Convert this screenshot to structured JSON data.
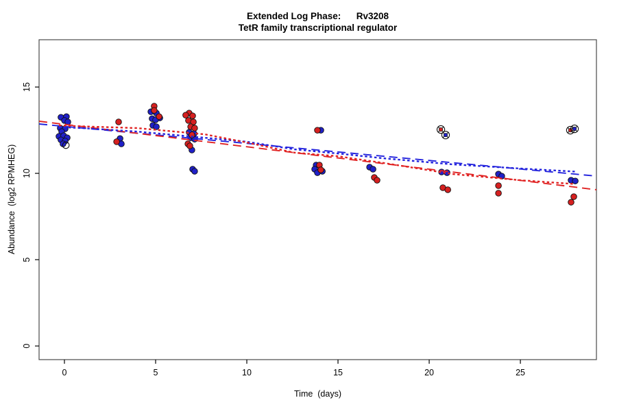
{
  "title": {
    "line1": "Extended Log Phase:      Rv3208",
    "line2": "TetR family transcriptional regulator"
  },
  "axes": {
    "x_label": "Time  (days)",
    "y_label": "Abundance  (log2 RPMHEG)"
  },
  "colors": {
    "background": "#ffffff",
    "axis": "#4a4a4a",
    "text": "#000000",
    "point_blue": "#2020c8",
    "point_red": "#d62020",
    "line_blue": "#2323dd",
    "line_red": "#e02222",
    "marker_outline": "#101010"
  },
  "chart_data": {
    "type": "scatter",
    "title": "Extended Log Phase: Rv3208",
    "subtitle": "TetR family transcriptional regulator",
    "xlabel": "Time (days)",
    "ylabel": "Abundance (log2 RPMHEG)",
    "xlim": [
      -1.39,
      29.17
    ],
    "ylim": [
      -0.79,
      17.74
    ],
    "x_ticks": [
      0,
      5,
      10,
      15,
      20,
      25
    ],
    "y_ticks": [
      0,
      5,
      10,
      15
    ],
    "grid": false,
    "legend": "none",
    "series": [
      {
        "name": "blue-replicate",
        "marker": "filled-circle",
        "color": "blue",
        "points": [
          [
            -0.19,
            13.25
          ],
          [
            0.11,
            13.29
          ],
          [
            0.0,
            13.06
          ],
          [
            0.19,
            12.98
          ],
          [
            -0.23,
            12.62
          ],
          [
            0.04,
            12.58
          ],
          [
            -0.15,
            12.42
          ],
          [
            -0.3,
            12.14
          ],
          [
            -0.04,
            12.18
          ],
          [
            0.15,
            12.06
          ],
          [
            -0.19,
            11.94
          ],
          [
            0.04,
            11.87
          ],
          [
            -0.08,
            11.71
          ],
          [
            3.05,
            12.02
          ],
          [
            3.12,
            11.71
          ],
          [
            4.74,
            13.57
          ],
          [
            5.04,
            13.49
          ],
          [
            5.23,
            13.21
          ],
          [
            4.81,
            13.17
          ],
          [
            5.0,
            13.1
          ],
          [
            4.85,
            12.78
          ],
          [
            5.04,
            12.7
          ],
          [
            6.84,
            12.38
          ],
          [
            7.11,
            12.3
          ],
          [
            6.92,
            12.06
          ],
          [
            7.14,
            11.98
          ],
          [
            6.99,
            11.35
          ],
          [
            7.03,
            10.24
          ],
          [
            7.14,
            10.12
          ],
          [
            14.06,
            12.5
          ],
          [
            13.8,
            10.48
          ],
          [
            13.72,
            10.24
          ],
          [
            14.14,
            10.12
          ],
          [
            13.87,
            10.04
          ],
          [
            16.73,
            10.36
          ],
          [
            16.92,
            10.24
          ],
          [
            20.68,
            10.08
          ],
          [
            20.98,
            10.04
          ],
          [
            23.8,
            9.96
          ],
          [
            23.98,
            9.84
          ],
          [
            27.78,
            9.6
          ],
          [
            28.01,
            9.56
          ]
        ]
      },
      {
        "name": "red-replicate",
        "marker": "filled-circle",
        "color": "red",
        "points": [
          [
            2.97,
            12.98
          ],
          [
            2.86,
            11.83
          ],
          [
            4.92,
            13.89
          ],
          [
            4.92,
            13.65
          ],
          [
            5.19,
            13.29
          ],
          [
            6.84,
            13.49
          ],
          [
            6.65,
            13.37
          ],
          [
            7.03,
            13.33
          ],
          [
            6.8,
            13.06
          ],
          [
            7.07,
            12.98
          ],
          [
            6.92,
            12.7
          ],
          [
            7.14,
            12.62
          ],
          [
            6.99,
            12.22
          ],
          [
            6.77,
            11.71
          ],
          [
            6.88,
            11.59
          ],
          [
            13.87,
            12.5
          ],
          [
            13.98,
            10.48
          ],
          [
            14.06,
            10.2
          ],
          [
            16.99,
            9.76
          ],
          [
            17.14,
            9.6
          ],
          [
            20.75,
            9.17
          ],
          [
            21.02,
            9.05
          ],
          [
            23.8,
            9.29
          ],
          [
            23.8,
            8.85
          ],
          [
            27.93,
            8.65
          ],
          [
            27.78,
            8.33
          ]
        ]
      }
    ],
    "flagged_points": {
      "name": "circle-cross-flagged",
      "marker": "circle-cross",
      "points": [
        {
          "x": 20.64,
          "y": 12.54,
          "color": "red"
        },
        {
          "x": 20.9,
          "y": 12.22,
          "color": "blue"
        },
        {
          "x": 27.74,
          "y": 12.5,
          "color": "red"
        },
        {
          "x": 27.97,
          "y": 12.58,
          "color": "blue"
        }
      ]
    },
    "open_circle_points": {
      "name": "open-circle",
      "marker": "open-circle",
      "points": [
        [
          0.08,
          11.63
        ]
      ]
    },
    "trend_lines": [
      {
        "name": "blue-linear-fit",
        "style": "dashed",
        "color": "blue",
        "points": [
          [
            -1.39,
            12.86
          ],
          [
            29.17,
            9.84
          ]
        ]
      },
      {
        "name": "red-linear-fit",
        "style": "dashed",
        "color": "red",
        "points": [
          [
            -1.39,
            13.02
          ],
          [
            29.17,
            9.05
          ]
        ]
      },
      {
        "name": "blue-smooth-fit",
        "style": "dotted",
        "color": "blue",
        "points": [
          [
            -0.3,
            12.68
          ],
          [
            1,
            12.62
          ],
          [
            4,
            12.42
          ],
          [
            7.7,
            12.06
          ],
          [
            10,
            11.83
          ],
          [
            12.6,
            11.39
          ],
          [
            15,
            11.15
          ],
          [
            17.5,
            10.87
          ],
          [
            21.3,
            10.52
          ],
          [
            25,
            10.28
          ],
          [
            28,
            10.1
          ]
        ]
      },
      {
        "name": "red-smooth-fit",
        "style": "dotted",
        "color": "red",
        "points": [
          [
            -0.3,
            12.78
          ],
          [
            1,
            12.72
          ],
          [
            4,
            12.62
          ],
          [
            7.7,
            12.26
          ],
          [
            10,
            11.79
          ],
          [
            12.6,
            11.2
          ],
          [
            15,
            10.99
          ],
          [
            17.5,
            10.6
          ],
          [
            21.3,
            9.96
          ],
          [
            25,
            9.6
          ],
          [
            28,
            9.38
          ]
        ]
      }
    ]
  }
}
